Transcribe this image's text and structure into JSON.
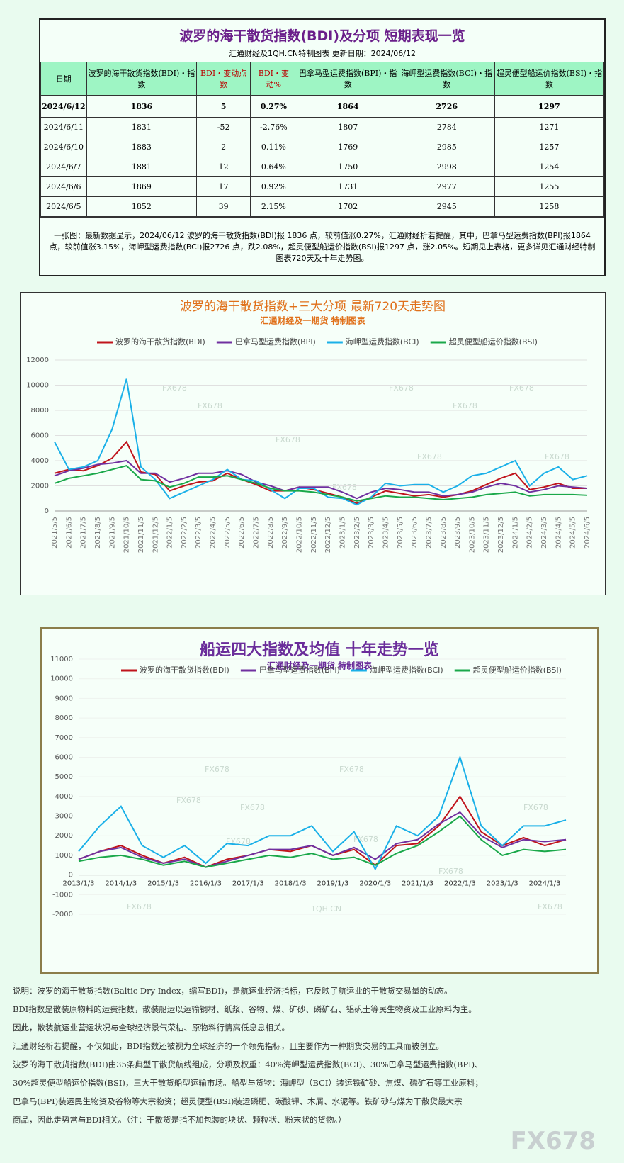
{
  "header": {
    "title": "波罗的海干散货指数(BDI)及分项  短期表现一览",
    "subtitle": "汇通财经及1QH.CN特制图表    更新日期：2024/06/12"
  },
  "table": {
    "columns": [
      "日期",
      "波罗的海干散货指数(BDI)・指数",
      "BDI・变动点数",
      "BDI・变动%",
      "巴拿马型运费指数(BPI)・指数",
      "海岬型运费指数(BCI)・指数",
      "超灵便型船运价指数(BSI)・指数"
    ],
    "rows": [
      [
        "2024/6/12",
        "1836",
        "5",
        "0.27%",
        "1864",
        "2726",
        "1297"
      ],
      [
        "2024/6/11",
        "1831",
        "-52",
        "-2.76%",
        "1807",
        "2784",
        "1271"
      ],
      [
        "2024/6/10",
        "1883",
        "2",
        "0.11%",
        "1769",
        "2985",
        "1257"
      ],
      [
        "2024/6/7",
        "1881",
        "12",
        "0.64%",
        "1750",
        "2998",
        "1254"
      ],
      [
        "2024/6/6",
        "1869",
        "17",
        "0.92%",
        "1731",
        "2977",
        "1255"
      ],
      [
        "2024/6/5",
        "1852",
        "39",
        "2.15%",
        "1702",
        "2945",
        "1258"
      ]
    ]
  },
  "note": "一张图：最新数据显示，2024/06/12 波罗的海干散货指数(BDI)报 1836 点，较前值涨0.27%，汇通财经析若提醒，其中，巴拿马型运费指数(BPI)报1864 点，较前值涨3.15%，海岬型运费指数(BCI)报2726 点，跌2.08%，超灵便型船运价指数(BSI)报1297 点，涨2.05%。短期见上表格，更多详见汇通财经特制图表720天及十年走势图。",
  "chart_data": [
    {
      "type": "line",
      "title": "波罗的海干散货指数+三大分项  最新720天走势图",
      "subtitle": "汇通财经及一期货  特制图表",
      "watermark": "FX678",
      "legend": "top",
      "grid": true,
      "categories": [
        "2021/5/5",
        "2021/6/5",
        "2021/7/5",
        "2021/8/5",
        "2021/9/5",
        "2021/10/5",
        "2021/11/5",
        "2021/12/5",
        "2022/1/5",
        "2022/2/5",
        "2022/3/5",
        "2022/4/5",
        "2022/5/5",
        "2022/6/5",
        "2022/7/5",
        "2022/8/5",
        "2022/9/5",
        "2022/10/5",
        "2022/11/5",
        "2022/12/5",
        "2023/1/5",
        "2023/2/5",
        "2023/3/5",
        "2023/4/5",
        "2023/5/5",
        "2023/6/5",
        "2023/7/5",
        "2023/8/5",
        "2023/9/5",
        "2023/10/5",
        "2023/11/5",
        "2023/12/5",
        "2024/1/5",
        "2024/2/5",
        "2024/3/5",
        "2024/4/5",
        "2024/5/5",
        "2024/6/5"
      ],
      "ylim": [
        0,
        12000
      ],
      "yticks": [
        0,
        2000,
        4000,
        6000,
        8000,
        10000,
        12000
      ],
      "series": [
        {
          "name": "波罗的海干散货指数(BDI)",
          "color": "#c0141c",
          "values": [
            3000,
            3300,
            3200,
            3600,
            4200,
            5500,
            3100,
            2900,
            1600,
            2000,
            2300,
            2400,
            3000,
            2500,
            2100,
            1600,
            1600,
            1900,
            1700,
            1400,
            1100,
            600,
            1100,
            1600,
            1400,
            1200,
            1300,
            1100,
            1300,
            1600,
            2100,
            2600,
            3000,
            1700,
            1900,
            2200,
            1800,
            1800
          ]
        },
        {
          "name": "巴拿马型运费指数(BPI)",
          "color": "#7030a0",
          "values": [
            2800,
            3200,
            3400,
            3700,
            3800,
            4000,
            3000,
            3000,
            2300,
            2600,
            3000,
            3000,
            3200,
            2900,
            2300,
            2000,
            1600,
            1900,
            1900,
            1900,
            1500,
            1000,
            1500,
            1800,
            1700,
            1500,
            1500,
            1200,
            1300,
            1500,
            1900,
            2200,
            2000,
            1500,
            1700,
            2000,
            1900,
            1800
          ]
        },
        {
          "name": "海岬型运费指数(BCI)",
          "color": "#1ab0e8",
          "values": [
            5500,
            3300,
            3500,
            4000,
            6500,
            10500,
            3500,
            2500,
            1000,
            1500,
            2000,
            2500,
            3300,
            2500,
            2400,
            1700,
            1000,
            1800,
            1800,
            1100,
            1000,
            500,
            1100,
            2200,
            2000,
            2100,
            2100,
            1500,
            2000,
            2800,
            3000,
            3500,
            4000,
            2000,
            3000,
            3500,
            2500,
            2800
          ]
        },
        {
          "name": "超灵便型船运价指数(BSI)",
          "color": "#1aa84a",
          "values": [
            2200,
            2600,
            2800,
            3000,
            3300,
            3600,
            2500,
            2400,
            1900,
            2200,
            2700,
            2700,
            2800,
            2500,
            2200,
            1800,
            1600,
            1600,
            1500,
            1300,
            1100,
            800,
            1000,
            1200,
            1100,
            1100,
            1000,
            900,
            1000,
            1100,
            1300,
            1400,
            1500,
            1200,
            1300,
            1300,
            1300,
            1250
          ]
        }
      ]
    },
    {
      "type": "line",
      "title": "船运四大指数及均值 十年走势一览",
      "subtitle": "汇通财经及一期货 特制图表",
      "watermark": "FX678",
      "source": "1QH.CN",
      "legend": "top",
      "grid": false,
      "categories": [
        "2013/1/3",
        null,
        "2014/1/3",
        null,
        "2015/1/3",
        null,
        "2016/1/3",
        null,
        "2017/1/3",
        null,
        "2018/1/3",
        null,
        "2019/1/3",
        null,
        "2020/1/3",
        null,
        "2021/1/3",
        null,
        "2022/1/3",
        null,
        "2023/1/3",
        null,
        "2024/1/3",
        null
      ],
      "ylim": [
        -2000,
        11000
      ],
      "yticks": [
        -2000,
        -1000,
        0,
        1000,
        2000,
        3000,
        4000,
        5000,
        6000,
        7000,
        8000,
        9000,
        10000,
        11000
      ],
      "series": [
        {
          "name": "波罗的海干散货指数(BDI)",
          "color": "#c0141c",
          "values": [
            800,
            1200,
            1500,
            1000,
            600,
            900,
            400,
            800,
            1000,
            1300,
            1200,
            1500,
            1000,
            1300,
            500,
            1500,
            1600,
            2500,
            4000,
            2200,
            1500,
            1900,
            1500,
            1800
          ]
        },
        {
          "name": "巴拿马型运费指数(BPI)",
          "color": "#7030a0",
          "values": [
            800,
            1200,
            1400,
            900,
            600,
            800,
            400,
            700,
            1000,
            1300,
            1300,
            1500,
            1000,
            1400,
            800,
            1600,
            1800,
            2600,
            3200,
            2000,
            1400,
            1800,
            1700,
            1800
          ]
        },
        {
          "name": "海岬型运费指数(BCI)",
          "color": "#1ab0e8",
          "values": [
            1200,
            2500,
            3500,
            1500,
            900,
            1500,
            600,
            1600,
            1500,
            2000,
            2000,
            2500,
            1200,
            2200,
            300,
            2500,
            2000,
            3000,
            6000,
            2500,
            1500,
            2500,
            2500,
            2800
          ]
        },
        {
          "name": "超灵便型船运价指数(BSI)",
          "color": "#1aa84a",
          "values": [
            700,
            900,
            1000,
            800,
            500,
            700,
            400,
            600,
            800,
            1000,
            900,
            1100,
            800,
            900,
            500,
            1100,
            1500,
            2200,
            3000,
            1800,
            1000,
            1300,
            1200,
            1300
          ]
        }
      ]
    }
  ],
  "notes": [
    "说明：波罗的海干散货指数(Baltic Dry Index，缩写BDI)，是航运业经济指标，它反映了航运业的干散货交易量的动态。",
    "BDI指数是散装原物料的运费指数，散装船运以运输钢材、纸浆、谷物、煤、矿砂、磷矿石、铝矾土等民生物资及工业原料为主。",
    "因此，散装航运业营运状况与全球经济景气荣枯、原物料行情高低息息相关。",
    "汇通财经析若提醒，不仅如此，BDI指数还被视为全球经济的一个领先指标，且主要作为一种期货交易的工具而被创立。",
    "波罗的海干散货指数(BDI)由35条典型干散货航线组成，分项及权重：40%海岬型运费指数(BCI)、30%巴拿马型运费指数(BPI)、",
    "30%超灵便型船运价指数(BSI)，三大干散货船型运输市场。船型与货物：海岬型（BCI）装运铁矿砂、焦煤、磷矿石等工业原料；",
    "巴拿马(BPI)装运民生物资及谷物等大宗物资；超灵便型(BSI)装运磷肥、碳酸钾、木屑、水泥等。铁矿砂与煤为干散货最大宗",
    "商品，因此走势常与BDI相关。（注：干散货是指不加包装的块状、颗粒状、粉末状的货物。）"
  ],
  "brand": "FX678"
}
